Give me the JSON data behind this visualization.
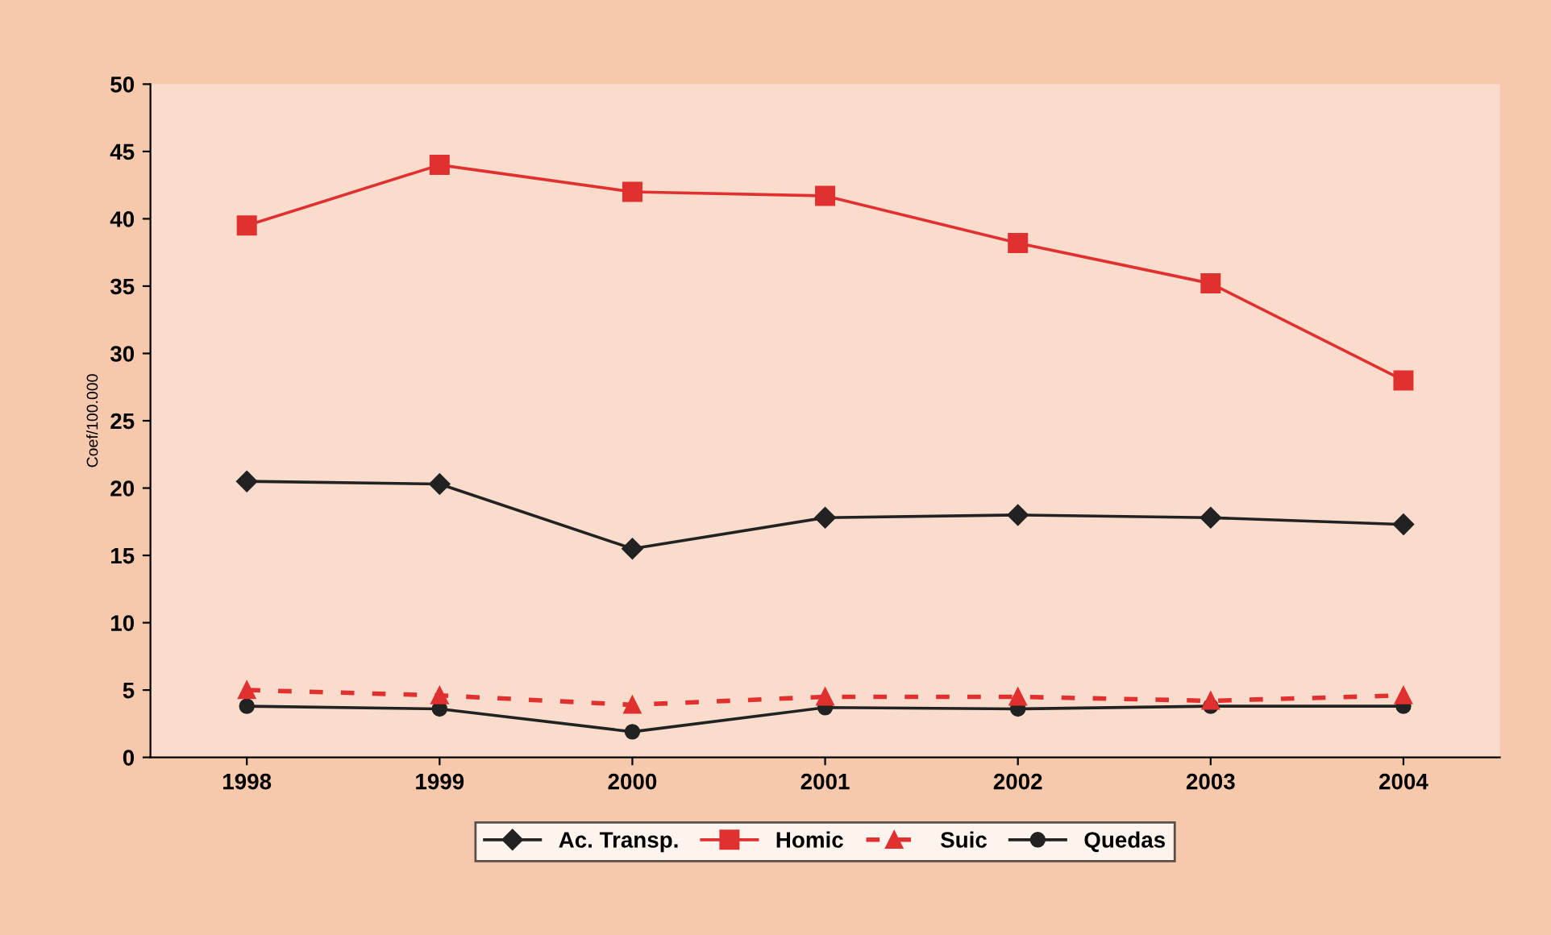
{
  "chart_data": {
    "type": "line",
    "ylabel": "Coef/100.000",
    "categories": [
      "1998",
      "1999",
      "2000",
      "2001",
      "2002",
      "2003",
      "2004"
    ],
    "series": [
      {
        "name": "Ac. Transp.",
        "color": "#222222",
        "marker": "diamond",
        "line_style": "solid",
        "values": [
          20.5,
          20.3,
          15.5,
          17.8,
          18,
          17.8,
          17.3
        ]
      },
      {
        "name": "Homic",
        "color": "#e03030",
        "marker": "square",
        "line_style": "solid",
        "values": [
          39.5,
          44,
          42,
          41.7,
          38.2,
          35.2,
          28
        ]
      },
      {
        "name": "Suic",
        "color": "#e03030",
        "marker": "triangle",
        "line_style": "dashed",
        "values": [
          5,
          4.6,
          3.9,
          4.5,
          4.5,
          4.2,
          4.6
        ]
      },
      {
        "name": "Quedas",
        "color": "#222222",
        "marker": "circle",
        "line_style": "solid",
        "values": [
          3.8,
          3.6,
          1.9,
          3.7,
          3.6,
          3.8,
          3.8
        ]
      }
    ],
    "ylim": [
      0,
      50
    ],
    "yticks": [
      0,
      5,
      10,
      15,
      20,
      25,
      30,
      35,
      40,
      45,
      50
    ],
    "grid": false,
    "legend": "bottom"
  }
}
